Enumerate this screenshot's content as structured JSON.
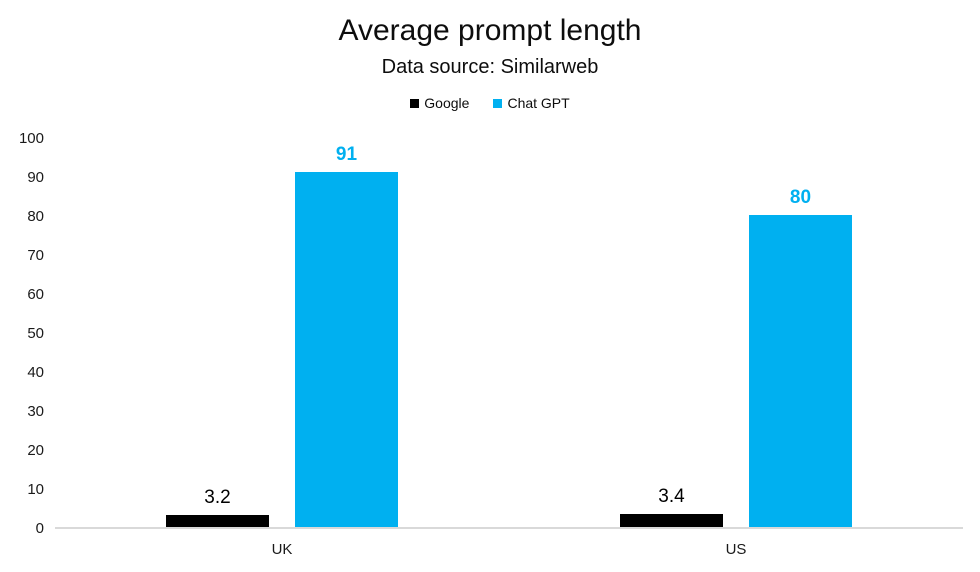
{
  "chart_data": {
    "type": "bar",
    "title": "Average prompt length",
    "subtitle": "Data source: Similarweb",
    "categories": [
      "UK",
      "US"
    ],
    "series": [
      {
        "name": "Google",
        "color": "#000000",
        "label_color": "#000000",
        "label_bold": false,
        "values": [
          3.2,
          3.4
        ]
      },
      {
        "name": "Chat GPT",
        "color": "#00B0F0",
        "label_color": "#00B0F0",
        "label_bold": true,
        "values": [
          91,
          80
        ]
      }
    ],
    "ylim": [
      0,
      100
    ],
    "yticks": [
      0,
      10,
      20,
      30,
      40,
      50,
      60,
      70,
      80,
      90,
      100
    ],
    "grid": "baseline-only",
    "baseline_color": "#d9d9d9",
    "legend_position": "top"
  }
}
